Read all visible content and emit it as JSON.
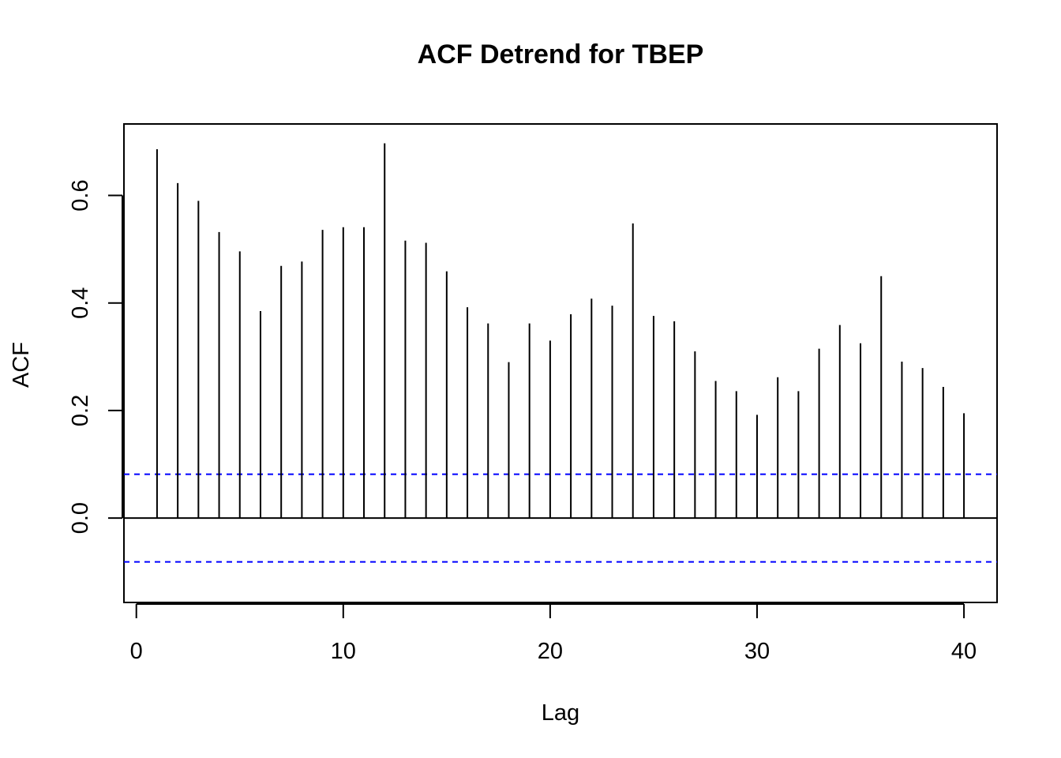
{
  "chart_data": {
    "type": "bar",
    "title": "ACF Detrend for TBEP",
    "xlabel": "Lag",
    "ylabel": "ACF",
    "xlim": [
      -0.6,
      41.6
    ],
    "ylim": [
      -0.157,
      0.733
    ],
    "x_ticks": [
      0,
      10,
      20,
      30,
      40
    ],
    "y_ticks": [
      0.0,
      0.2,
      0.4,
      0.6
    ],
    "x_tick_labels": [
      "0",
      "10",
      "20",
      "30",
      "40"
    ],
    "y_tick_labels": [
      "0.0",
      "0.2",
      "0.4",
      "0.6"
    ],
    "lags": [
      1,
      2,
      3,
      4,
      5,
      6,
      7,
      8,
      9,
      10,
      11,
      12,
      13,
      14,
      15,
      16,
      17,
      18,
      19,
      20,
      21,
      22,
      23,
      24,
      25,
      26,
      27,
      28,
      29,
      30,
      31,
      32,
      33,
      34,
      35,
      36,
      37,
      38,
      39,
      40
    ],
    "values": [
      0.686,
      0.623,
      0.59,
      0.532,
      0.496,
      0.385,
      0.469,
      0.477,
      0.536,
      0.541,
      0.541,
      0.697,
      0.516,
      0.512,
      0.459,
      0.392,
      0.362,
      0.29,
      0.362,
      0.33,
      0.379,
      0.408,
      0.395,
      0.548,
      0.376,
      0.366,
      0.31,
      0.255,
      0.236,
      0.192,
      0.262,
      0.236,
      0.315,
      0.359,
      0.325,
      0.45,
      0.291,
      0.279,
      0.244,
      0.195
    ],
    "confidence_bound": 0.0815,
    "zero_line_color": "#000000",
    "bar_color": "#000000",
    "ci_color": "#0000ff",
    "grid": false
  }
}
